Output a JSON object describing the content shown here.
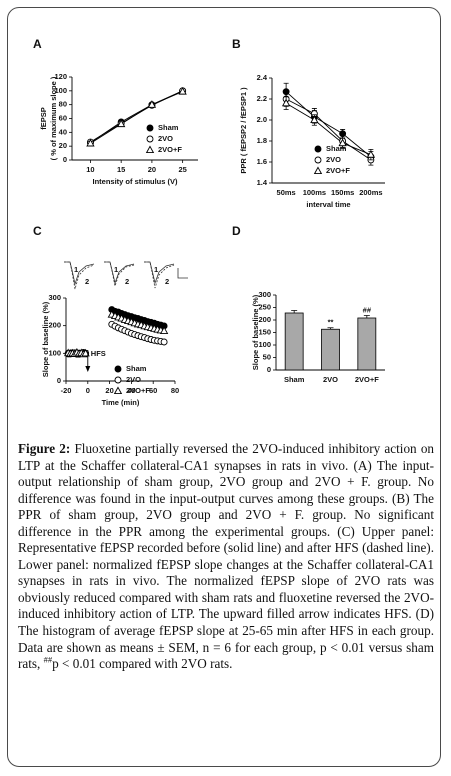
{
  "chart_data": [
    {
      "type": "line",
      "panel": "A",
      "xlabel": "Intensity of stimulus (V)",
      "ylabel": [
        "fEPSP",
        "( % of maximum slope )"
      ],
      "x": [
        10,
        15,
        20,
        25
      ],
      "xlim": [
        7,
        27.5
      ],
      "xticks": [
        10,
        15,
        20,
        25
      ],
      "ylim": [
        0,
        120
      ],
      "yticks": [
        0,
        20,
        40,
        60,
        80,
        100,
        120
      ],
      "series": [
        {
          "name": "Sham",
          "marker": "filled-circle",
          "color": "#000000",
          "values": [
            25,
            55,
            80,
            100
          ],
          "errors": [
            3,
            3,
            2,
            0
          ]
        },
        {
          "name": "2VO",
          "marker": "open-circle",
          "color": "#000000",
          "values": [
            26,
            53,
            79,
            100
          ],
          "errors": [
            3,
            3,
            2,
            0
          ]
        },
        {
          "name": "2VO+F",
          "marker": "open-triangle",
          "color": "#000000",
          "values": [
            24,
            52,
            80,
            99
          ],
          "errors": [
            3,
            3,
            2,
            0
          ]
        }
      ]
    },
    {
      "type": "line",
      "panel": "B",
      "xlabel": "interval time",
      "ylabel": [
        "PPR ( fEPSP2 / fEPSP1 )"
      ],
      "categories": [
        "50ms",
        "100ms",
        "150ms",
        "200ms"
      ],
      "ylim": [
        1.4,
        2.4
      ],
      "yticks": [
        1.4,
        1.6,
        1.8,
        {
          "value": 2,
          "label": "2.0"
        },
        2.2,
        2.4
      ],
      "series": [
        {
          "name": "Sham",
          "marker": "filled-circle",
          "color": "#000000",
          "values": [
            2.27,
            2.03,
            1.87,
            1.65
          ],
          "errors": [
            0.08,
            0.06,
            0.04,
            0.05
          ]
        },
        {
          "name": "2VO",
          "marker": "open-circle",
          "color": "#000000",
          "values": [
            2.2,
            2.06,
            1.8,
            1.62
          ],
          "errors": [
            0.07,
            0.05,
            0.06,
            0.05
          ]
        },
        {
          "name": "2VO+F",
          "marker": "open-triangle",
          "color": "#000000",
          "values": [
            2.16,
            2.0,
            1.78,
            1.67
          ],
          "errors": [
            0.06,
            0.05,
            0.05,
            0.05
          ]
        }
      ]
    },
    {
      "type": "scatter",
      "panel": "C",
      "xlabel": "Time (min)",
      "ylabel": [
        "Slope of baseline (%)"
      ],
      "traces": [
        [
          "1",
          "2"
        ],
        [
          "1",
          "2"
        ],
        [
          "1",
          "2"
        ]
      ],
      "annotation": "HFS",
      "x": [
        -18,
        -16,
        -14,
        -12,
        -10,
        -8,
        -6,
        -4,
        -2,
        22,
        25,
        28,
        31,
        34,
        37,
        40,
        43,
        46,
        49,
        52,
        55,
        58,
        61,
        64,
        67,
        70
      ],
      "xlim": [
        -20,
        80
      ],
      "xticks": [
        -20,
        0,
        20,
        40,
        60,
        80
      ],
      "ylim": [
        0,
        300
      ],
      "yticks": [
        0,
        100,
        200,
        300
      ],
      "series": [
        {
          "name": "Sham",
          "marker": "filled-circle",
          "color": "#000000",
          "values": [
            100,
            98,
            102,
            99,
            101,
            97,
            100,
            103,
            99,
            258,
            252,
            249,
            244,
            240,
            236,
            233,
            229,
            226,
            222,
            219,
            215,
            212,
            209,
            205,
            202,
            199
          ]
        },
        {
          "name": "2VO",
          "marker": "open-circle",
          "color": "#000000",
          "values": [
            98,
            101,
            99,
            102,
            97,
            100,
            99,
            101,
            100,
            205,
            198,
            192,
            187,
            182,
            177,
            172,
            168,
            164,
            160,
            157,
            153,
            150,
            147,
            145,
            143,
            141
          ]
        },
        {
          "name": "2VO+F",
          "marker": "open-triangle",
          "color": "#000000",
          "values": [
            101,
            99,
            100,
            98,
            103,
            99,
            101,
            97,
            100,
            240,
            235,
            230,
            226,
            221,
            217,
            213,
            209,
            205,
            202,
            198,
            195,
            192,
            189,
            186,
            183,
            181
          ]
        }
      ]
    },
    {
      "type": "bar",
      "panel": "D",
      "ylabel": [
        "Slope of baseline (%)"
      ],
      "categories": [
        "Sham",
        "2VO",
        "2VO+F"
      ],
      "values": [
        228,
        163,
        208
      ],
      "errors": [
        10,
        6,
        10
      ],
      "significance": [
        null,
        "**",
        "##"
      ],
      "color": "#a8a8a8",
      "ylim": [
        0,
        300
      ],
      "yticks": [
        0,
        50,
        100,
        150,
        200,
        250,
        300
      ]
    }
  ],
  "caption": {
    "label": "Figure 2:",
    "text": "Fluoxetine partially reversed the 2VO-induced inhibitory action on LTP at the Schaffer collateral-CA1 synapses in rats in vivo. (A) The input-output relationship of sham group, 2VO group and 2VO + F. group. No difference was found in the input-output curves among these groups. (B) The PPR of sham group, 2VO group and 2VO + F. group. No significant difference in the PPR among the experimental groups. (C) Upper panel: Representative fEPSP recorded before (solid line) and after HFS (dashed line). Lower panel: normalized fEPSP slope changes at the Schaffer collateral-CA1 synapses in rats in vivo. The normalized fEPSP slope of 2VO rats was obviously reduced compared with sham rats and fluoxetine reversed the 2VO-induced inhibitory action of LTP. The upward filled arrow indicates HFS. (D) The histogram of average fEPSP slope at 25-65 min after HFS in each group. Data are shown as means ± SEM, n = 6 for each group, p < 0.01 versus sham rats,",
    "sup": "##",
    "tail": "p < 0.01 compared with 2VO rats."
  }
}
